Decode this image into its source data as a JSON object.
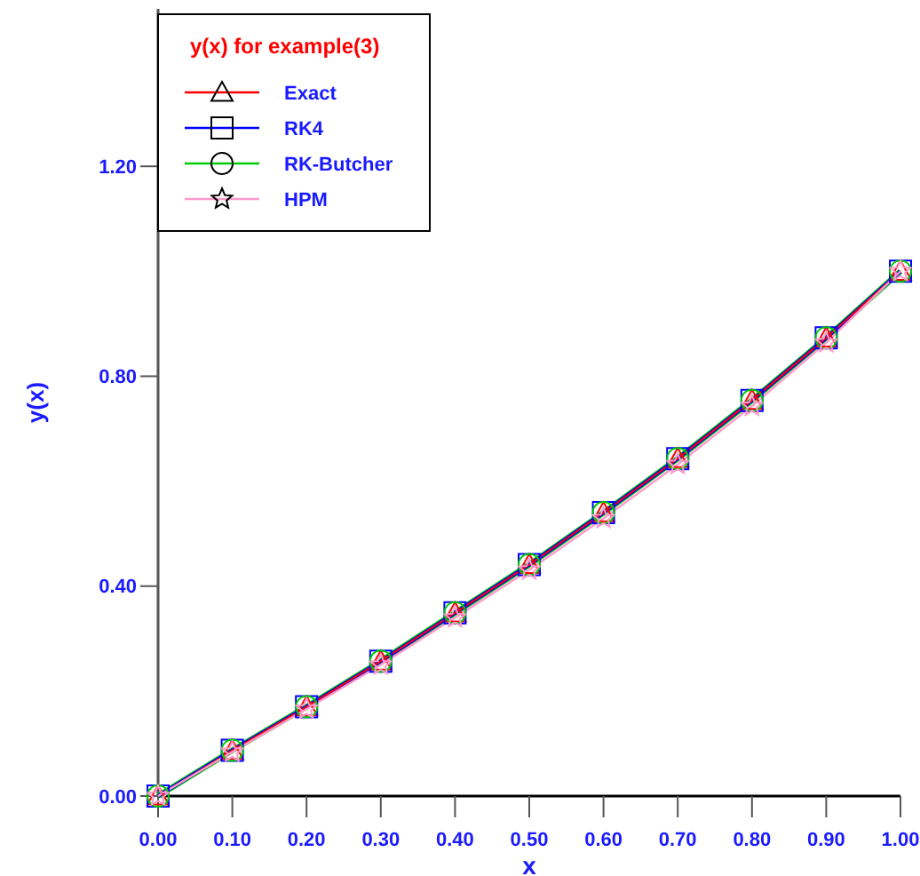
{
  "chart_data": {
    "type": "line",
    "xlabel": "x",
    "ylabel": "y(x)",
    "legend_title": "y(x) for example(3)",
    "legend": "top left",
    "x": [
      0,
      0.1,
      0.2,
      0.3,
      0.4,
      0.5,
      0.6,
      0.7,
      0.8,
      0.9,
      1.0
    ],
    "xlim": [
      0,
      1
    ],
    "xticks": [
      {
        "value": 0,
        "label": "0.00"
      },
      {
        "value": 0.1,
        "label": "0.10"
      },
      {
        "value": 0.2,
        "label": "0.20"
      },
      {
        "value": 0.3,
        "label": "0.30"
      },
      {
        "value": 0.4,
        "label": "0.40"
      },
      {
        "value": 0.5,
        "label": "0.50"
      },
      {
        "value": 0.6,
        "label": "0.60"
      },
      {
        "value": 0.7,
        "label": "0.70"
      },
      {
        "value": 0.8,
        "label": "0.80"
      },
      {
        "value": 0.9,
        "label": "0.90"
      },
      {
        "value": 1,
        "label": "1.00"
      }
    ],
    "ylim": [
      0,
      1.5
    ],
    "yticks": [
      {
        "value": 0,
        "label": "0.00"
      },
      {
        "value": 0.4,
        "label": "0.40"
      },
      {
        "value": 0.8,
        "label": "0.80"
      },
      {
        "value": 1.2,
        "label": "1.20"
      }
    ],
    "grid": false,
    "line_style": "solid",
    "series": [
      {
        "name": "Exact",
        "color": "#ff0000",
        "marker": "triangle",
        "values": [
          0,
          0.087,
          0.17,
          0.257,
          0.349,
          0.441,
          0.54,
          0.643,
          0.754,
          0.873,
          1.0
        ]
      },
      {
        "name": "RK4",
        "color": "#0000ff",
        "marker": "square",
        "values": [
          0,
          0.087,
          0.17,
          0.257,
          0.349,
          0.441,
          0.54,
          0.643,
          0.754,
          0.873,
          1.0
        ]
      },
      {
        "name": "RK-Butcher",
        "color": "#00cc00",
        "marker": "circle",
        "values": [
          0,
          0.087,
          0.17,
          0.257,
          0.349,
          0.441,
          0.54,
          0.643,
          0.754,
          0.873,
          1.0
        ]
      },
      {
        "name": "HPM",
        "color": "#ff99cc",
        "marker": "star",
        "values": [
          0,
          0.084,
          0.166,
          0.25,
          0.34,
          0.431,
          0.529,
          0.632,
          0.743,
          0.864,
          1.0
        ]
      }
    ]
  }
}
